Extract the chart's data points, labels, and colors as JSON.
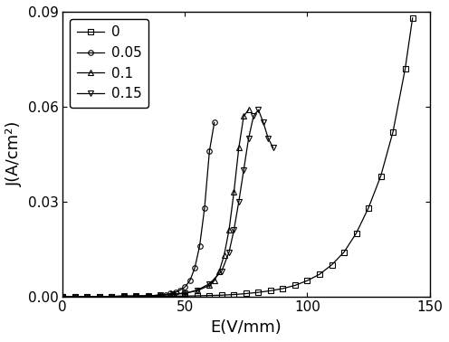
{
  "title": "",
  "xlabel": "E(V/mm)",
  "ylabel": "J(A/cm²)",
  "xlim": [
    0,
    150
  ],
  "ylim": [
    0,
    0.09
  ],
  "yticks": [
    0.0,
    0.03,
    0.06,
    0.09
  ],
  "xticks": [
    0,
    50,
    100,
    150
  ],
  "series": [
    {
      "label": "0",
      "marker": "s",
      "color": "black",
      "x": [
        0,
        5,
        10,
        15,
        20,
        25,
        30,
        35,
        40,
        45,
        50,
        55,
        60,
        65,
        70,
        75,
        80,
        85,
        90,
        95,
        100,
        105,
        110,
        115,
        120,
        125,
        130,
        135,
        140,
        143
      ],
      "y": [
        0,
        0,
        0,
        0,
        0,
        0,
        0,
        0,
        0,
        0.0001,
        0.0001,
        0.0002,
        0.0003,
        0.0004,
        0.0006,
        0.0009,
        0.0013,
        0.0018,
        0.0025,
        0.0035,
        0.005,
        0.007,
        0.01,
        0.014,
        0.02,
        0.028,
        0.038,
        0.052,
        0.072,
        0.088
      ]
    },
    {
      "label": "0.05",
      "marker": "o",
      "color": "black",
      "x": [
        0,
        5,
        10,
        15,
        20,
        25,
        30,
        35,
        40,
        42,
        44,
        46,
        48,
        50,
        52,
        54,
        56,
        58,
        60,
        62
      ],
      "y": [
        0,
        0,
        0,
        0,
        0,
        0.0001,
        0.0001,
        0.0002,
        0.0004,
        0.0006,
        0.0009,
        0.0013,
        0.002,
        0.003,
        0.005,
        0.009,
        0.016,
        0.028,
        0.046,
        0.055
      ]
    },
    {
      "label": "0.1",
      "marker": "^",
      "color": "black",
      "x": [
        0,
        5,
        10,
        15,
        20,
        25,
        30,
        35,
        40,
        45,
        50,
        55,
        60,
        62,
        64,
        66,
        68,
        70,
        72,
        74,
        76
      ],
      "y": [
        0,
        0,
        0,
        0,
        0,
        0.0001,
        0.0001,
        0.0002,
        0.0004,
        0.0006,
        0.001,
        0.0018,
        0.0035,
        0.005,
        0.008,
        0.013,
        0.021,
        0.033,
        0.047,
        0.057,
        0.059
      ]
    },
    {
      "label": "0.15",
      "marker": "v",
      "color": "black",
      "x": [
        0,
        5,
        10,
        15,
        20,
        25,
        30,
        35,
        40,
        45,
        50,
        55,
        60,
        65,
        68,
        70,
        72,
        74,
        76,
        78,
        80,
        82,
        84,
        86
      ],
      "y": [
        0,
        0,
        0,
        0,
        0,
        0.0001,
        0.0001,
        0.0002,
        0.0004,
        0.0007,
        0.001,
        0.002,
        0.004,
        0.008,
        0.014,
        0.021,
        0.03,
        0.04,
        0.05,
        0.057,
        0.059,
        0.055,
        0.05,
        0.047
      ]
    }
  ],
  "background_color": "#ffffff",
  "markersize": 4,
  "linewidth": 0.9
}
